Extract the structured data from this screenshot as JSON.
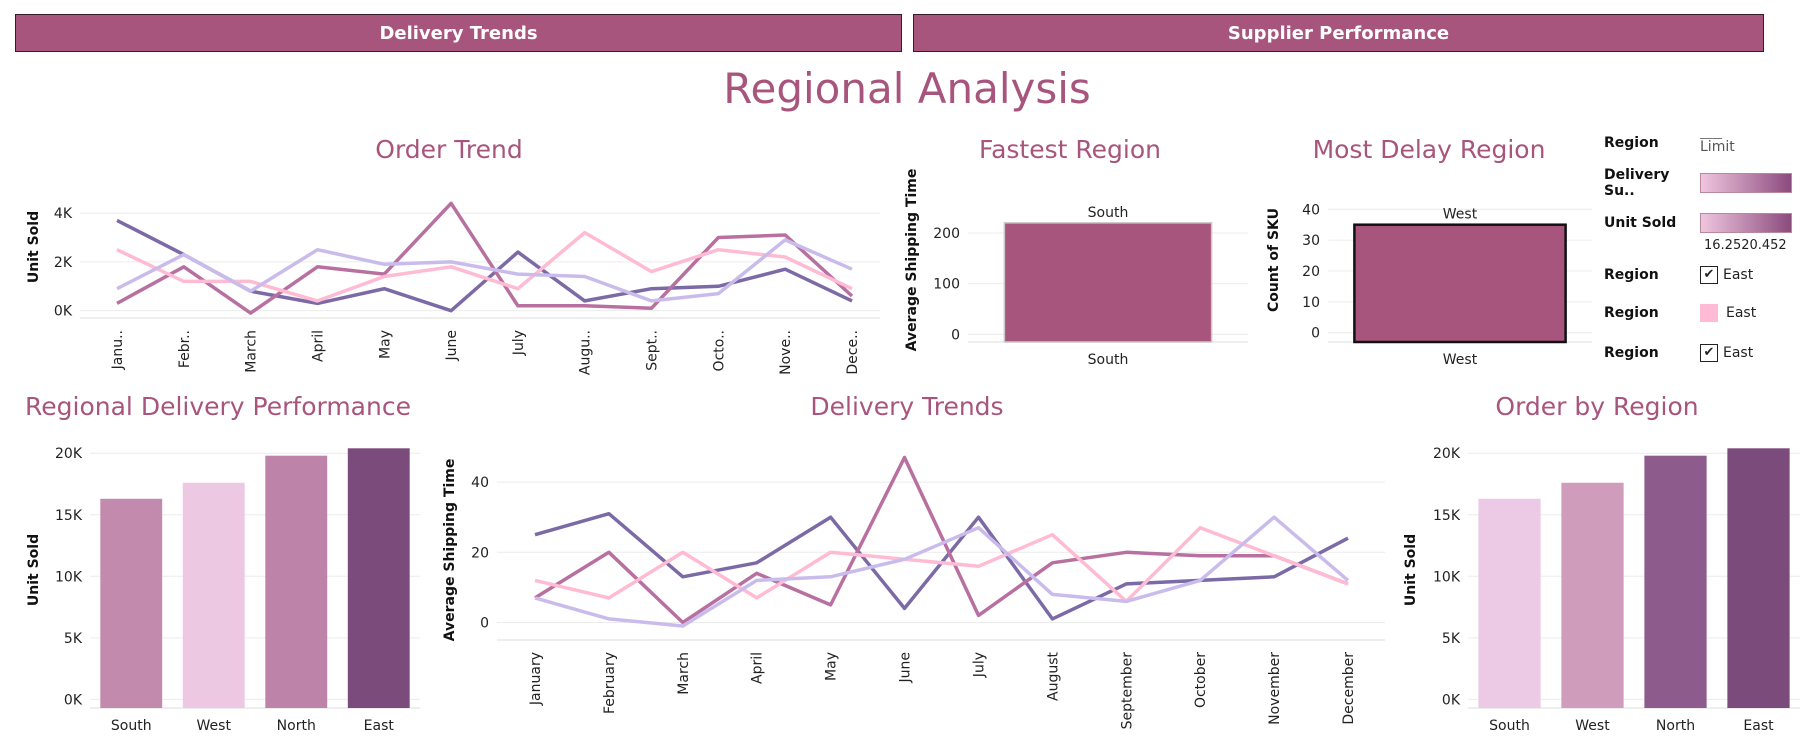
{
  "nav": {
    "left_label": "Delivery Trends",
    "right_label": "Supplier Performance"
  },
  "page_title": "Regional Analysis",
  "colors": {
    "accent": "#a8557d",
    "east": "#7b4b7f",
    "north": "#b870a0",
    "west": "#ffbbd4",
    "south": "#c9bcec"
  },
  "legend": {
    "region_title": "Region",
    "limit_label": "Limit",
    "delivery_label": "Delivery Su..",
    "unit_sold_label": "Unit Sold",
    "unit_sold_range": "16.2520.452",
    "r1_title": "Region",
    "r1_value": "East",
    "r2_title": "Region",
    "r2_value": "East",
    "r3_title": "Region",
    "r3_value": "East"
  },
  "chart_data": [
    {
      "id": "order_trend",
      "type": "line",
      "title": "Order Trend",
      "ylabel": "Unit Sold",
      "categories": [
        "Janu..",
        "Febr..",
        "March",
        "April",
        "May",
        "June",
        "July",
        "Augu..",
        "Sept..",
        "Octo..",
        "Nove..",
        "Dece.."
      ],
      "yticks": [
        0,
        2000,
        4000
      ],
      "ytick_labels": [
        "0K",
        "2K",
        "4K"
      ],
      "ylim": [
        -300,
        4700
      ],
      "series": [
        {
          "color": "#7b6aa6",
          "values": [
            3700,
            2300,
            800,
            300,
            900,
            0,
            2400,
            400,
            900,
            1000,
            1700,
            400
          ]
        },
        {
          "color": "#b870a0",
          "values": [
            300,
            1800,
            -100,
            1800,
            1500,
            4400,
            200,
            200,
            100,
            3000,
            3100,
            600
          ]
        },
        {
          "color": "#ffbbd4",
          "values": [
            2500,
            1200,
            1200,
            400,
            1400,
            1800,
            900,
            3200,
            1600,
            2500,
            2200,
            900
          ]
        },
        {
          "color": "#c9bcec",
          "values": [
            900,
            2300,
            800,
            2500,
            1900,
            2000,
            1500,
            1400,
            400,
            700,
            2900,
            1700
          ]
        }
      ]
    },
    {
      "id": "fastest_region",
      "type": "bar",
      "title": "Fastest Region",
      "ylabel": "Average Shipping Time",
      "categories": [
        "South"
      ],
      "values": [
        220
      ],
      "data_labels": [
        "South"
      ],
      "yticks": [
        0,
        100,
        200
      ],
      "ylim": [
        -15,
        265
      ]
    },
    {
      "id": "most_delay_region",
      "type": "bar",
      "title": "Most Delay Region",
      "ylabel": "Count of SKU",
      "categories": [
        "West"
      ],
      "values": [
        35
      ],
      "data_labels": [
        "West"
      ],
      "yticks": [
        0,
        10,
        20,
        30,
        40
      ],
      "ylim": [
        -3,
        43
      ]
    },
    {
      "id": "regional_delivery_performance",
      "type": "bar",
      "title": "Regional Delivery Performance",
      "ylabel": "Unit Sold",
      "categories": [
        "South",
        "West",
        "North",
        "East"
      ],
      "values": [
        16300,
        17600,
        19800,
        20400
      ],
      "colors": [
        "#c28aac",
        "#ecc8e3",
        "#bd83a8",
        "#7b4b7b"
      ],
      "yticks": [
        0,
        5000,
        10000,
        15000,
        20000
      ],
      "ytick_labels": [
        "0K",
        "5K",
        "10K",
        "15K",
        "20K"
      ],
      "ylim": [
        -700,
        21400
      ]
    },
    {
      "id": "delivery_trends",
      "type": "line",
      "title": "Delivery Trends",
      "ylabel": "Average Shipping Time",
      "categories": [
        "January",
        "February",
        "March",
        "April",
        "May",
        "June",
        "July",
        "August",
        "September",
        "October",
        "November",
        "December"
      ],
      "yticks": [
        0,
        20,
        40
      ],
      "ylim": [
        -5,
        52
      ],
      "series": [
        {
          "color": "#7b6aa6",
          "values": [
            25,
            31,
            13,
            17,
            30,
            4,
            30,
            1,
            11,
            12,
            13,
            24
          ]
        },
        {
          "color": "#b870a0",
          "values": [
            7,
            20,
            0,
            14,
            5,
            47,
            2,
            17,
            20,
            19,
            19,
            11
          ]
        },
        {
          "color": "#ffbbd4",
          "values": [
            12,
            7,
            20,
            7,
            20,
            18,
            16,
            25,
            6,
            27,
            19,
            11
          ]
        },
        {
          "color": "#c9bcec",
          "values": [
            7,
            1,
            -1,
            12,
            13,
            18,
            27,
            8,
            6,
            12,
            30,
            12
          ]
        }
      ]
    },
    {
      "id": "order_by_region",
      "type": "bar",
      "title": "Order by Region",
      "ylabel": "Unit Sold",
      "categories": [
        "South",
        "West",
        "North",
        "East"
      ],
      "values": [
        16300,
        17600,
        19800,
        20400
      ],
      "colors": [
        "#eccae6",
        "#cf9cbc",
        "#8d5c8d",
        "#7b4b7b"
      ],
      "yticks": [
        0,
        5000,
        10000,
        15000,
        20000
      ],
      "ytick_labels": [
        "0K",
        "5K",
        "10K",
        "15K",
        "20K"
      ],
      "ylim": [
        -700,
        21400
      ]
    }
  ]
}
